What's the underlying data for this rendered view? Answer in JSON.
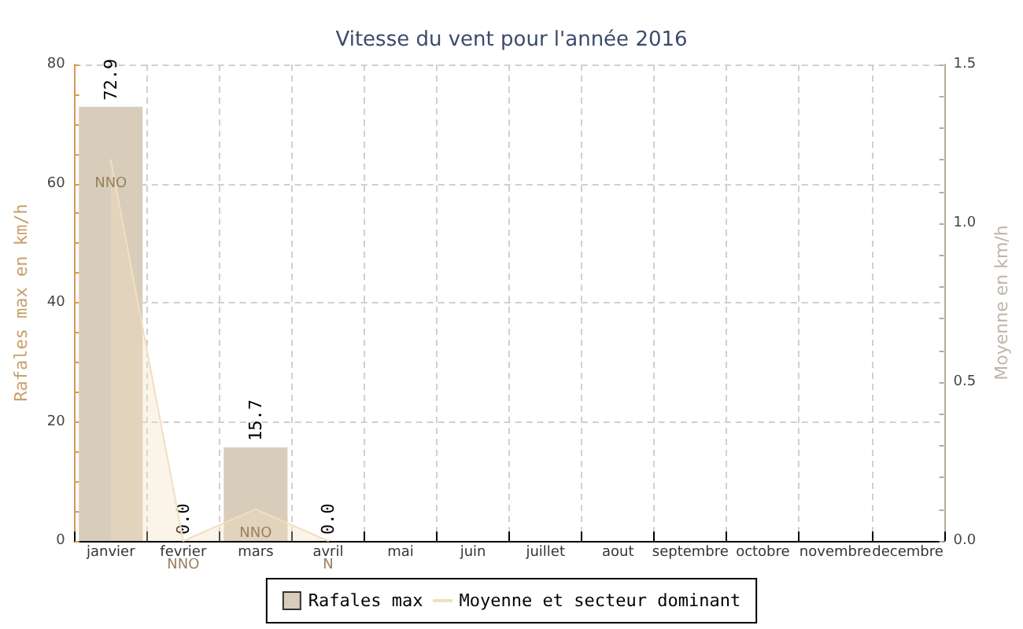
{
  "chart_data": {
    "type": "bar",
    "title": "Vitesse du vent pour l'année 2016",
    "categories": [
      "janvier",
      "fevrier",
      "mars",
      "avril",
      "mai",
      "juin",
      "juillet",
      "aout",
      "septembre",
      "octobre",
      "novembre",
      "decembre"
    ],
    "ylabel": "Rafales max en km/h",
    "y2label": "Moyenne en km/h",
    "ylim": [
      0,
      80
    ],
    "yticks": [
      0,
      {
        "value": 5,
        "label": null
      },
      {
        "value": 10,
        "label": null
      },
      {
        "value": 15,
        "label": null
      },
      20,
      {
        "value": 25,
        "label": null
      },
      {
        "value": 30,
        "label": null
      },
      {
        "value": 35,
        "label": null
      },
      40,
      {
        "value": 45,
        "label": null
      },
      {
        "value": 50,
        "label": null
      },
      {
        "value": 55,
        "label": null
      },
      60,
      {
        "value": 65,
        "label": null
      },
      {
        "value": 70,
        "label": null
      },
      {
        "value": 75,
        "label": null
      },
      80
    ],
    "y2lim": [
      0,
      1.5
    ],
    "y2ticks": [
      {
        "value": 0,
        "label": "0.0"
      },
      {
        "value": 0.1,
        "label": null
      },
      {
        "value": 0.2,
        "label": null
      },
      {
        "value": 0.3,
        "label": null
      },
      {
        "value": 0.4,
        "label": null
      },
      {
        "value": 0.5,
        "label": "0.5"
      },
      {
        "value": 0.6,
        "label": null
      },
      {
        "value": 0.7,
        "label": null
      },
      {
        "value": 0.8,
        "label": null
      },
      {
        "value": 0.9,
        "label": null
      },
      {
        "value": 1,
        "label": "1.0"
      },
      {
        "value": 1.1,
        "label": null
      },
      {
        "value": 1.2,
        "label": null
      },
      {
        "value": 1.3,
        "label": null
      },
      {
        "value": 1.4,
        "label": null
      },
      {
        "value": 1.5,
        "label": "1.5"
      }
    ],
    "series": [
      {
        "name": "Rafales max",
        "color": "#d8cdba",
        "values": [
          72.9,
          0,
          15.7,
          0,
          null,
          null,
          null,
          null,
          null,
          null,
          null,
          null
        ],
        "value_labels": [
          "72.9",
          "0.0",
          "15.7",
          "0.0",
          null,
          null,
          null,
          null,
          null,
          null,
          null,
          null
        ]
      },
      {
        "name": "Moyenne et secteur dominant",
        "type": "area",
        "axis": "y2",
        "color": "#f3dfbf",
        "values": [
          1.2,
          0,
          0.1,
          0,
          null,
          null,
          null,
          null,
          null,
          null,
          null,
          null
        ],
        "value_labels": [
          "NNO",
          "NNO",
          "NNO",
          "N",
          null,
          null,
          null,
          null,
          null,
          null,
          null,
          null
        ]
      }
    ],
    "grid": true,
    "legend": "bottom",
    "marker": "none"
  }
}
